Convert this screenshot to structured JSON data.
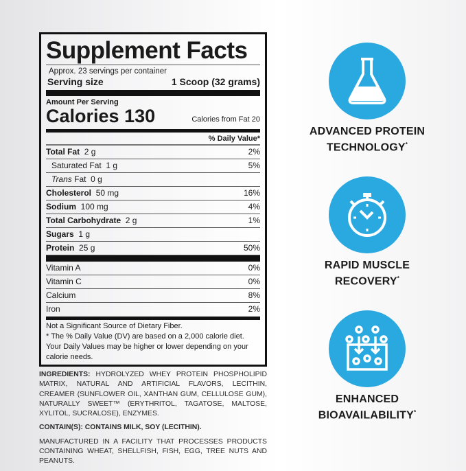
{
  "facts": {
    "title": "Supplement Facts",
    "servings": "Approx. 23 servings per container",
    "serving_size_label": "Serving size",
    "serving_size_value": "1 Scoop (32 grams)",
    "amount_per_serving": "Amount Per Serving",
    "calories_label": "Calories",
    "calories_value": "130",
    "calories_from_fat": "Calories from Fat 20",
    "dv_header": "% Daily Value*",
    "nutrients": [
      {
        "name": "Total Fat",
        "amount": "2 g",
        "dv": "2%",
        "bold": true
      },
      {
        "name": "Saturated Fat",
        "amount": "1 g",
        "dv": "5%",
        "indent": true
      },
      {
        "name": "Trans",
        "name_suffix": "Fat",
        "amount": "0 g",
        "dv": "",
        "indent": true
      },
      {
        "name": "Cholesterol",
        "amount": "50 mg",
        "dv": "16%",
        "bold": true
      },
      {
        "name": "Sodium",
        "amount": "100 mg",
        "dv": "4%",
        "bold": true
      },
      {
        "name": "Total Carbohydrate",
        "amount": "2 g",
        "dv": "1%",
        "bold": true
      },
      {
        "name": "Sugars",
        "amount": "1 g",
        "dv": "",
        "bold": true
      },
      {
        "name": "Protein",
        "amount": "25 g",
        "dv": "50%",
        "bold": true
      }
    ],
    "vitamins": [
      {
        "name": "Vitamin A",
        "dv": "0%"
      },
      {
        "name": "Vitamin C",
        "dv": "0%"
      },
      {
        "name": "Calcium",
        "dv": "8%"
      },
      {
        "name": "Iron",
        "dv": "2%"
      }
    ],
    "note1": "Not a Significant Source of Dietary Fiber.",
    "note2": "* The % Daily Value (DV) are based on a 2,000 calorie diet. Your Daily Values may be higher or lower depending on your calorie needs."
  },
  "ingredients": {
    "label": "INGREDIENTS:",
    "text": " HYDROLYZED WHEY PROTEIN PHOSPHOLIPID MATRIX, NATURAL AND ARTIFICIAL FLAVORS, LECITHIN, CREAMER (SUNFLOWER OIL, XANTHAN GUM, CELLULOSE GUM), NATURALLY SWEET™ (ERYTHRITOL, TAGATOSE, MALTOSE, XYLITOL, SUCRALOSE), ENZYMES.",
    "contains": "CONTAIN(S): CONTAINS MILK, SOY (LECITHIN).",
    "facility": "MANUFACTURED IN A FACILITY THAT PROCESSES PRODUCTS CONTAINING WHEAT, SHELLFISH, FISH, EGG, TREE NUTS AND PEANUTS."
  },
  "features": [
    {
      "icon": "flask-icon",
      "line1": "ADVANCED PROTEIN",
      "line2": "TECHNOLOGY",
      "mark": "*"
    },
    {
      "icon": "stopwatch-icon",
      "line1": "RAPID MUSCLE",
      "line2": "RECOVERY",
      "mark": "*"
    },
    {
      "icon": "absorption-icon",
      "line1": "ENHANCED",
      "line2": "BIOAVAILABILITY",
      "mark": "*"
    }
  ],
  "colors": {
    "accent": "#2aa8e0"
  }
}
